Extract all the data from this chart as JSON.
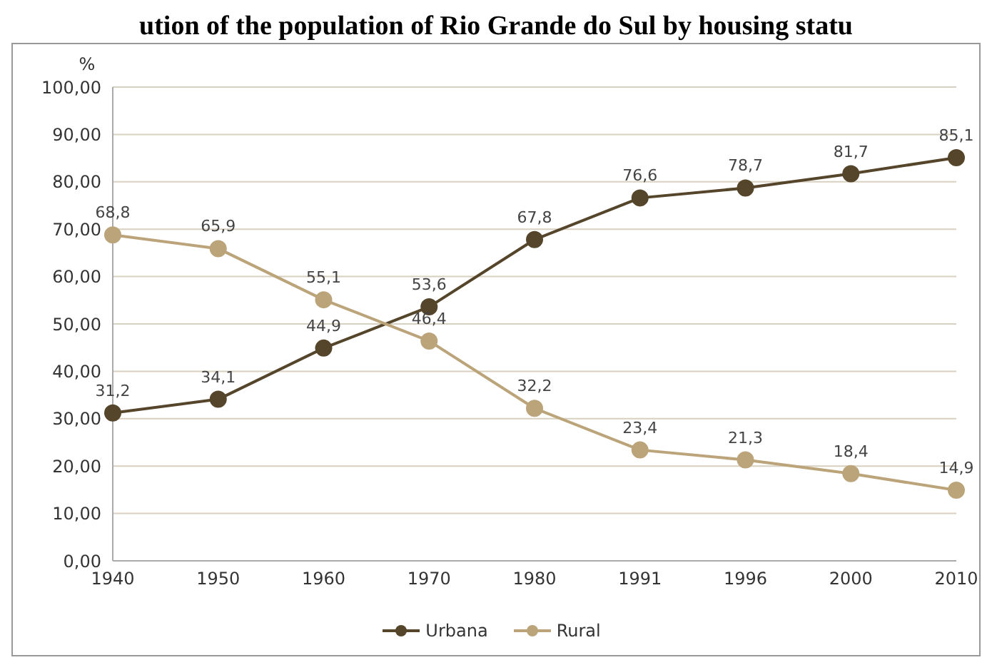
{
  "chart_data": {
    "type": "line",
    "title": "ution of the population of Rio Grande do Sul by housing statu",
    "ylabel": "%",
    "categories": [
      "1940",
      "1950",
      "1960",
      "1970",
      "1980",
      "1991",
      "1996",
      "2000",
      "2010"
    ],
    "series": [
      {
        "name": "Urbana",
        "color": "#54452b",
        "values": [
          31.2,
          34.1,
          44.9,
          53.6,
          67.8,
          76.6,
          78.7,
          81.7,
          85.1
        ],
        "value_labels": [
          "31,2",
          "34,1",
          "44,9",
          "53,6",
          "67,8",
          "76,6",
          "78,7",
          "81,7",
          "85,1"
        ]
      },
      {
        "name": "Rural",
        "color": "#bca47a",
        "values": [
          68.8,
          65.9,
          55.1,
          46.4,
          32.2,
          23.4,
          21.3,
          18.4,
          14.9
        ],
        "value_labels": [
          "68,8",
          "65,9",
          "55,1",
          "46,4",
          "32,2",
          "23,4",
          "21,3",
          "18,4",
          "14,9"
        ]
      }
    ],
    "ylim": [
      0,
      100
    ],
    "yticks": [
      {
        "value": 0,
        "label": "0,00"
      },
      {
        "value": 10,
        "label": "10,00"
      },
      {
        "value": 20,
        "label": "20,00"
      },
      {
        "value": 30,
        "label": "30,00"
      },
      {
        "value": 40,
        "label": "40,00"
      },
      {
        "value": 50,
        "label": "50,00"
      },
      {
        "value": 60,
        "label": "60,00"
      },
      {
        "value": 70,
        "label": "70,00"
      },
      {
        "value": 80,
        "label": "80,00"
      },
      {
        "value": 90,
        "label": "90,00"
      },
      {
        "value": 100,
        "label": "100,00"
      }
    ],
    "grid": "y",
    "legend": "bottom",
    "marker": "circle",
    "line_style": "solid"
  }
}
